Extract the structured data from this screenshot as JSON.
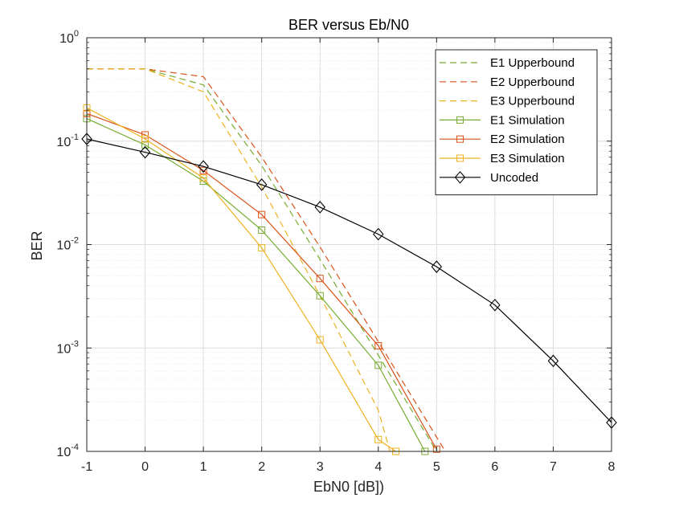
{
  "chart_data": {
    "type": "line",
    "title": "BER versus Eb/N0",
    "xlabel": "EbN0 [dB])",
    "ylabel": "BER",
    "xlim": [
      -1,
      8
    ],
    "ylim": [
      0.0001,
      1
    ],
    "yscale": "log",
    "grid": true,
    "minor_grid": true,
    "legend_position": "top-right",
    "x_ticks": [
      -1,
      0,
      1,
      2,
      3,
      4,
      5,
      6,
      7,
      8
    ],
    "x_tick_labels": [
      "-1",
      "0",
      "1",
      "2",
      "3",
      "4",
      "5",
      "6",
      "7",
      "8"
    ],
    "y_ticks": [
      {
        "value": 1,
        "base": "10",
        "exp": "0"
      },
      {
        "value": 0.1,
        "base": "10",
        "exp": "-1"
      },
      {
        "value": 0.01,
        "base": "10",
        "exp": "-2"
      },
      {
        "value": 0.001,
        "base": "10",
        "exp": "-3"
      },
      {
        "value": 0.0001,
        "base": "10",
        "exp": "-4"
      }
    ],
    "series": [
      {
        "name": "E1 Upperbound",
        "color": "#77AC30",
        "style": "dashed",
        "marker": "none",
        "x": [
          -1,
          0,
          1,
          2,
          3,
          4,
          5
        ],
        "y": [
          0.5,
          0.5,
          0.35,
          0.058,
          0.0072,
          0.00085,
          0.0001
        ]
      },
      {
        "name": "E2 Upperbound",
        "color": "#D95319",
        "style": "dashed",
        "marker": "none",
        "x": [
          -1,
          0,
          1,
          2,
          3,
          4,
          5.15
        ],
        "y": [
          0.5,
          0.5,
          0.42,
          0.07,
          0.0095,
          0.00115,
          0.0001
        ]
      },
      {
        "name": "E3 Upperbound",
        "color": "#EDB120",
        "style": "dashed",
        "marker": "none",
        "x": [
          -1,
          0,
          1,
          2,
          3,
          4,
          4.2
        ],
        "y": [
          0.5,
          0.5,
          0.3,
          0.036,
          0.0032,
          0.00025,
          0.0001
        ]
      },
      {
        "name": "E1 Simulation",
        "color": "#77AC30",
        "style": "solid",
        "marker": "square",
        "x": [
          -1,
          0,
          1,
          2,
          3,
          4,
          4.8
        ],
        "y": [
          0.165,
          0.092,
          0.041,
          0.0138,
          0.0032,
          0.00068,
          0.0001
        ]
      },
      {
        "name": "E2 Simulation",
        "color": "#D95319",
        "style": "solid",
        "marker": "square",
        "x": [
          -1,
          0,
          1,
          2,
          3,
          4,
          5
        ],
        "y": [
          0.185,
          0.115,
          0.052,
          0.0195,
          0.0047,
          0.00105,
          0.000105
        ]
      },
      {
        "name": "E3 Simulation",
        "color": "#EDB120",
        "style": "solid",
        "marker": "square",
        "x": [
          -1,
          0,
          1,
          2,
          3,
          4,
          4.3
        ],
        "y": [
          0.21,
          0.105,
          0.044,
          0.0093,
          0.0012,
          0.00013,
          0.0001
        ]
      },
      {
        "name": "Uncoded",
        "color": "#000000",
        "style": "solid",
        "marker": "diamond",
        "x": [
          -1,
          0,
          1,
          2,
          3,
          4,
          5,
          6,
          7,
          8
        ],
        "y": [
          0.105,
          0.078,
          0.057,
          0.038,
          0.023,
          0.0126,
          0.0061,
          0.0026,
          0.00075,
          0.00019
        ]
      }
    ]
  }
}
